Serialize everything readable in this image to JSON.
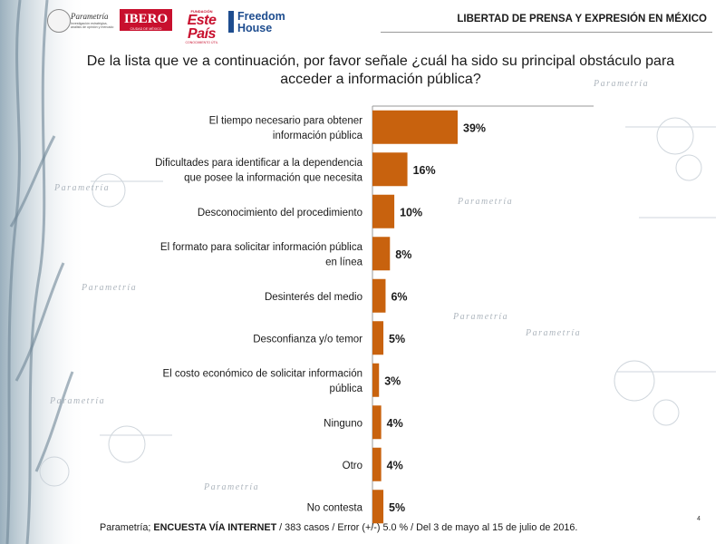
{
  "header": {
    "logos": {
      "parametria": "Parametría",
      "parametria_tag": "Investigación estratégica, análisis de opinión y mercado",
      "ibero": "IBERO",
      "ibero_sub": "CIUDAD DE MÉXICO",
      "estepais_sup": "FUNDACIÓN",
      "estepais": "Este País",
      "estepais_bot": "CONOCIMIENTO ÚTIL",
      "freedom_line1": "Freedom",
      "freedom_line2": "House"
    },
    "title": "LIBERTAD DE PRENSA Y EXPRESIÓN EN MÉXICO"
  },
  "question": {
    "line1": "De la lista que ve a continuación, por favor señale ¿cuál ha sido su principal obstáculo para",
    "line2": "acceder a información pública?"
  },
  "chart_data": {
    "type": "bar",
    "orientation": "horizontal",
    "categories": [
      [
        "El tiempo necesario para obtener",
        "información pública"
      ],
      [
        "Dificultades para identificar a la dependencia",
        "que posee la información que necesita"
      ],
      [
        "Desconocimiento del procedimiento"
      ],
      [
        "El formato para solicitar información pública",
        "en línea"
      ],
      [
        "Desinterés del medio"
      ],
      [
        "Desconfianza y/o temor"
      ],
      [
        "El costo económico de solicitar información",
        "pública"
      ],
      [
        "Ninguno"
      ],
      [
        "Otro"
      ],
      [
        "No contesta"
      ]
    ],
    "values": [
      39,
      16,
      10,
      8,
      6,
      5,
      3,
      4,
      4,
      5
    ],
    "value_labels": [
      "39%",
      "16%",
      "10%",
      "8%",
      "6%",
      "5%",
      "3%",
      "4%",
      "4%",
      "5%"
    ],
    "unit": "%",
    "bar_color": "#c8620e",
    "grid": false,
    "legend": "none"
  },
  "footer": {
    "prefix": "Parametría; ",
    "bold": "ENCUESTA VÍA INTERNET",
    "rest": " /  383 casos / Error (+/-) 5.0 % / Del 3 de mayo al 15 de julio de 2016."
  },
  "page_number": "4",
  "watermark": "Parametría"
}
